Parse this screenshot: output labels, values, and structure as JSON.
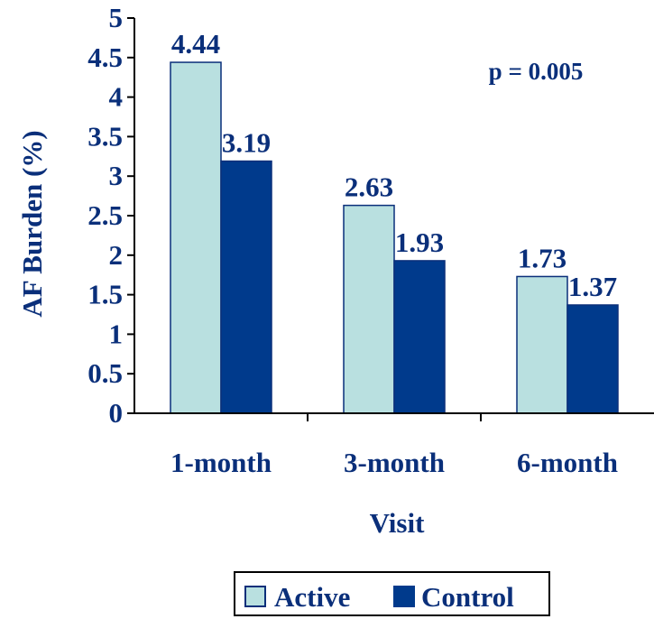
{
  "chart_data": {
    "type": "bar",
    "title": "",
    "xlabel": "Visit",
    "ylabel": "AF Burden (%)",
    "ylim": [
      0,
      5
    ],
    "yticks": [
      "0",
      "0.5",
      "1",
      "1.5",
      "2",
      "2.5",
      "3",
      "3.5",
      "4",
      "4.5",
      "5"
    ],
    "categories": [
      "1-month",
      "3-month",
      "6-month"
    ],
    "series": [
      {
        "name": "Active",
        "values": [
          4.44,
          2.63,
          1.73
        ],
        "labels": [
          "4.44",
          "2.63",
          "1.73"
        ],
        "color": "#b9e0e0"
      },
      {
        "name": "Control",
        "values": [
          3.19,
          1.93,
          1.37
        ],
        "labels": [
          "3.19",
          "1.93",
          "1.37"
        ],
        "color": "#003a8c"
      }
    ],
    "annotation": "p = 0.005",
    "legend": "bottom-center",
    "grid": false
  },
  "colors": {
    "text": "#0a2f7a",
    "axis": "#000000"
  }
}
